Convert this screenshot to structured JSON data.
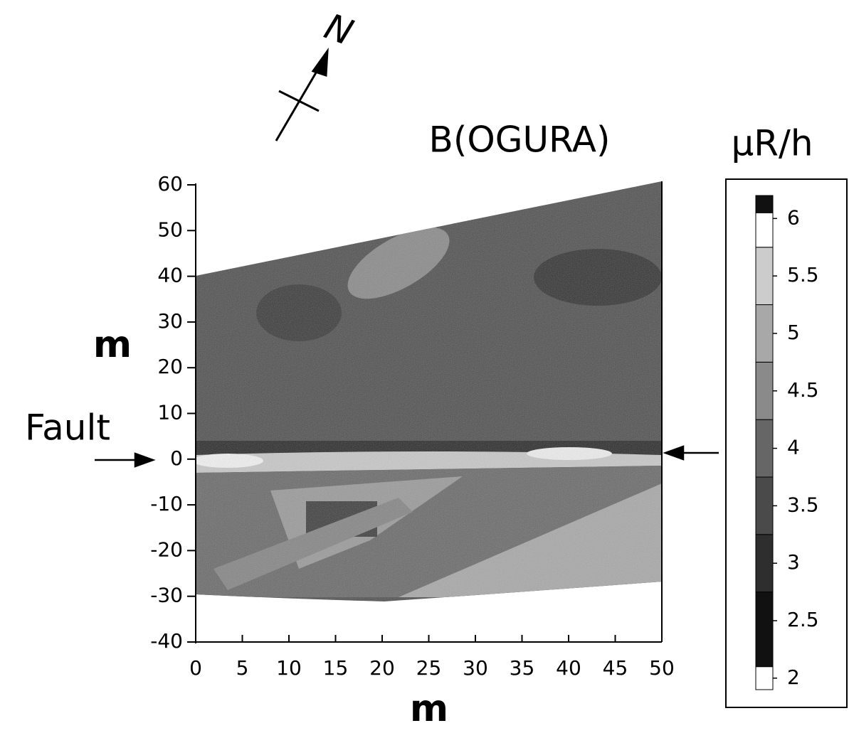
{
  "chart_data": {
    "type": "contour",
    "title": "B(OGURA)",
    "x_label": "m",
    "y_label": "m",
    "xlim": [
      0,
      50
    ],
    "xticks": [
      0,
      5,
      10,
      15,
      20,
      25,
      30,
      35,
      40,
      45,
      50
    ],
    "ylim": [
      -40,
      60
    ],
    "yticks": [
      -40,
      -30,
      -20,
      -10,
      0,
      10,
      20,
      30,
      40,
      50,
      60
    ],
    "annotations": [
      "Fault",
      "N"
    ],
    "colorbar": {
      "label": "μR/h",
      "lim": [
        1.9,
        6.2
      ],
      "ticks": [
        2,
        2.5,
        3,
        3.5,
        4,
        4.5,
        5,
        5.5,
        6
      ],
      "bounds": [
        1.9,
        2.1,
        2.75,
        3.25,
        3.75,
        4.25,
        4.75,
        5.25,
        5.75,
        6.05,
        6.2
      ],
      "colors": [
        "#ffffff",
        "#111111",
        "#2e2e2e",
        "#4a4a4a",
        "#666666",
        "#8a8a8a",
        "#a8a8a8",
        "#cccccc",
        "#ffffff",
        "#111111"
      ]
    }
  }
}
